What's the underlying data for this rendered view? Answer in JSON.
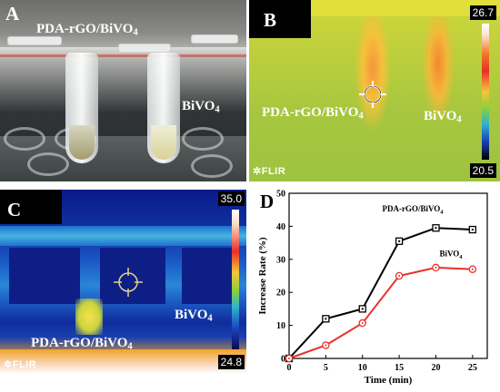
{
  "panels": {
    "a": {
      "letter": "A",
      "label_main": "PDA-rGO/BiVO",
      "label_sub": "4",
      "label2_main": "BiVO",
      "label2_sub": "4"
    },
    "b": {
      "letter": "B",
      "label_main": "PDA-rGO/BiVO",
      "label_sub": "4",
      "label2_main": "BiVO",
      "label2_sub": "4",
      "scale_max": "26.7",
      "scale_min": "20.5",
      "brand": "FLIR"
    },
    "c": {
      "letter": "C",
      "label_main": "PDA-rGO/BiVO",
      "label_sub": "4",
      "label2_main": "BiVO",
      "label2_sub": "4",
      "scale_max": "35.0",
      "scale_min": "24.8",
      "brand": "FLIR"
    },
    "d": {
      "letter": "D"
    }
  },
  "chart_data": {
    "type": "line",
    "x": [
      0,
      5,
      10,
      15,
      20,
      25
    ],
    "xlabel": "Time (min)",
    "ylabel": "Increase Rate (%)",
    "xlim": [
      0,
      27
    ],
    "ylim": [
      0,
      50
    ],
    "xticks": [
      0,
      5,
      10,
      15,
      20,
      25
    ],
    "yticks": [
      0,
      10,
      20,
      30,
      40,
      50
    ],
    "grid": false,
    "series": [
      {
        "name_main": "PDA-rGO/BiVO",
        "name_sub": "4",
        "color": "#000000",
        "marker": "square",
        "values": [
          0,
          12,
          15,
          35.5,
          39.5,
          39
        ]
      },
      {
        "name_main": "BiVO",
        "name_sub": "4",
        "color": "#e8302a",
        "marker": "circle",
        "values": [
          0,
          4,
          10.7,
          25,
          27.5,
          27
        ]
      }
    ]
  }
}
